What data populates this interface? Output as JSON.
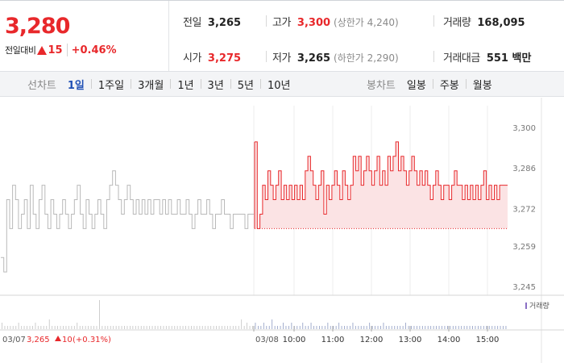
{
  "quote": {
    "price": "3,280",
    "prev_label": "전일대비",
    "change": "15",
    "change_pct": "+0.46%",
    "prev_close": {
      "label": "전일",
      "value": "3,265"
    },
    "open": {
      "label": "시가",
      "value": "3,275"
    },
    "high": {
      "label": "고가",
      "value": "3,300",
      "sub": "(상한가 4,240)"
    },
    "low": {
      "label": "저가",
      "value": "3,265",
      "sub": "(하한가 2,290)"
    },
    "volume": {
      "label": "거래량",
      "value": "168,095"
    },
    "trade_amount": {
      "label": "거래대금",
      "value": "551 백만"
    }
  },
  "tabs": {
    "line_title": "선차트",
    "line_items": [
      "1일",
      "1주일",
      "3개월",
      "1년",
      "3년",
      "5년",
      "10년"
    ],
    "active": "1일",
    "candle_title": "봉차트",
    "candle_items": [
      "일봉",
      "주봉",
      "월봉"
    ]
  },
  "colors": {
    "up": "#e8282b",
    "prev_line": "#b9b9b9",
    "fill": "#fbe3e4",
    "active_tab": "#1f4fb5"
  },
  "chart_data": {
    "type": "line",
    "ylim": [
      3245,
      3300
    ],
    "yticks": [
      "3,300",
      "3,286",
      "3,272",
      "3,259",
      "3,245"
    ],
    "ytick_values": [
      3300,
      3286,
      3272,
      3259,
      3245
    ],
    "xtick_labels": [
      "03/08",
      "10:00",
      "11:00",
      "12:00",
      "13:00",
      "14:00",
      "15:00"
    ],
    "baseline": 3265,
    "volume_legend": "거래량",
    "prev_day": {
      "label": "03/07",
      "summary_price": "3,265",
      "summary_change": "10",
      "summary_pct": "(+0.31%)",
      "values": [
        3255,
        3250,
        3275,
        3265,
        3280,
        3275,
        3265,
        3270,
        3275,
        3265,
        3280,
        3270,
        3265,
        3275,
        3280,
        3270,
        3265,
        3275,
        3270,
        3265,
        3270,
        3275,
        3270,
        3265,
        3270,
        3275,
        3280,
        3270,
        3265,
        3275,
        3270,
        3265,
        3270,
        3275,
        3270,
        3265,
        3275,
        3280,
        3285,
        3280,
        3275,
        3270,
        3275,
        3280,
        3275,
        3270,
        3275,
        3270,
        3275,
        3270,
        3275,
        3270,
        3275,
        3275,
        3270,
        3275,
        3270,
        3275,
        3270,
        3270,
        3275,
        3270,
        3270,
        3275,
        3270,
        3265,
        3270,
        3275,
        3270,
        3270,
        3275,
        3270,
        3265,
        3270,
        3270,
        3275,
        3270,
        3270,
        3265,
        3270,
        3270,
        3270,
        3270,
        3265,
        3270,
        3270
      ]
    },
    "today": {
      "label": "03/08",
      "values": [
        3295,
        3265,
        3270,
        3280,
        3275,
        3285,
        3280,
        3275,
        3280,
        3285,
        3275,
        3280,
        3275,
        3280,
        3275,
        3280,
        3275,
        3280,
        3275,
        3285,
        3290,
        3285,
        3280,
        3275,
        3280,
        3285,
        3270,
        3280,
        3275,
        3280,
        3285,
        3280,
        3275,
        3285,
        3280,
        3275,
        3280,
        3290,
        3285,
        3290,
        3280,
        3285,
        3290,
        3285,
        3280,
        3285,
        3290,
        3280,
        3285,
        3280,
        3290,
        3285,
        3290,
        3295,
        3285,
        3290,
        3285,
        3280,
        3285,
        3290,
        3285,
        3280,
        3285,
        3280,
        3285,
        3280,
        3275,
        3280,
        3285,
        3280,
        3275,
        3280,
        3280,
        3275,
        3280,
        3285,
        3280,
        3280,
        3275,
        3280,
        3275,
        3280,
        3275,
        3280,
        3275,
        3280,
        3285,
        3275,
        3280,
        3275,
        3280,
        3275,
        3280,
        3280,
        3280
      ]
    },
    "volume": [
      2,
      1,
      1,
      1,
      1,
      1,
      2,
      1,
      1,
      1,
      1,
      1,
      2,
      1,
      1,
      1,
      1,
      3,
      1,
      1,
      1,
      1,
      1,
      1,
      1,
      1,
      1,
      2,
      1,
      1,
      1,
      1,
      1,
      1,
      1,
      9,
      1,
      1,
      1,
      1,
      1,
      1,
      1,
      1,
      1,
      1,
      1,
      1,
      1,
      1,
      1,
      1,
      1,
      1,
      1,
      1,
      1,
      1,
      1,
      1,
      1,
      1,
      1,
      1,
      1,
      1,
      1,
      1,
      1,
      1,
      1,
      1,
      1,
      1,
      1,
      1,
      1,
      1,
      1,
      1,
      1,
      1,
      1,
      1,
      1,
      1,
      3,
      1,
      2,
      1,
      1,
      2,
      1,
      1,
      2,
      1,
      1,
      3,
      1,
      1,
      1,
      2,
      1,
      1,
      2,
      1,
      1,
      1,
      2,
      1,
      1,
      2,
      1,
      1,
      1,
      1,
      1,
      2,
      1,
      1,
      1,
      2,
      1,
      1,
      1,
      1,
      2,
      1,
      1,
      1,
      1,
      1,
      2,
      1,
      1,
      1,
      1,
      2,
      1,
      1,
      1,
      1,
      1,
      1,
      1,
      2,
      1,
      1,
      1,
      1,
      1,
      1,
      1,
      1,
      1,
      1,
      1,
      1,
      1,
      1,
      1,
      1,
      1,
      1,
      1,
      1,
      1,
      1,
      1,
      1,
      1,
      1,
      1,
      1,
      1,
      1,
      1,
      1,
      1,
      1,
      1,
      1
    ]
  }
}
